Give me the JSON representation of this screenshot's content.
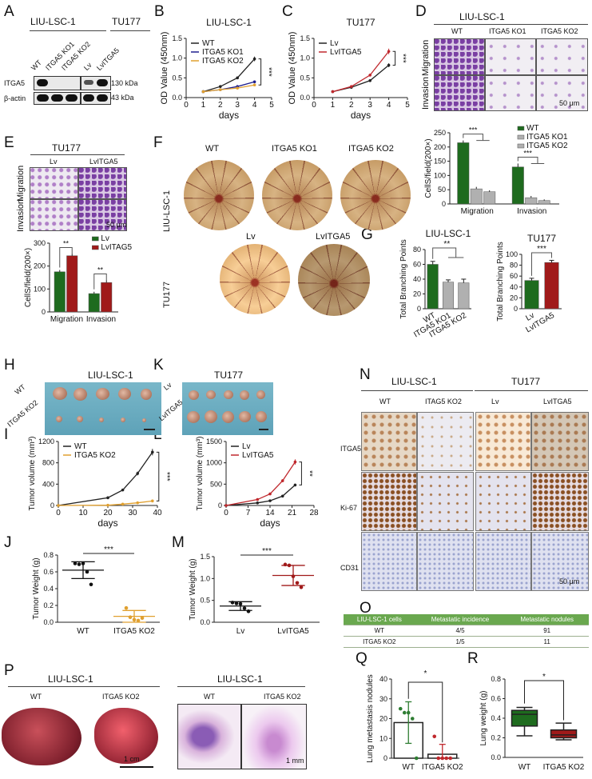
{
  "panel_A": {
    "letter": "A",
    "groups": [
      "LIU-LSC-1",
      "TU177"
    ],
    "lanes": [
      "WT",
      "ITGA5 KO1",
      "ITGA5 KO2",
      "Lv",
      "LvITGA5"
    ],
    "rows": [
      "ITGA5",
      "β-actin"
    ],
    "sizes": [
      "130 kDa",
      "43 kDa"
    ],
    "itga5_band_level": [
      1,
      0,
      0,
      0.5,
      1
    ]
  },
  "panel_B": {
    "letter": "B"
  },
  "panel_C": {
    "letter": "C"
  },
  "panel_D": {
    "letter": "D",
    "title": "LIU-LSC-1",
    "columns": [
      "WT",
      "ITGA5 KO1",
      "ITGA5 KO2"
    ],
    "rows": [
      "Migration",
      "Invasion"
    ],
    "scale": "50 μm"
  },
  "panel_E": {
    "letter": "E",
    "title": "TU177",
    "columns": [
      "Lv",
      "LvITGA5"
    ],
    "rows": [
      "Migration",
      "Invasion"
    ],
    "scale": "50 μm"
  },
  "panel_F": {
    "letter": "F",
    "row1_label": "LIU-LSC-1",
    "row1_columns": [
      "WT",
      "ITGA5 KO1",
      "ITGA5 KO2"
    ],
    "row2_label": "TU177",
    "row2_columns": [
      "Lv",
      "LvITGA5"
    ]
  },
  "panel_G": {
    "letter": "G"
  },
  "panel_H": {
    "letter": "H",
    "title": "LIU-LSC-1",
    "rows": [
      "WT",
      "ITGA5 KO2"
    ]
  },
  "panel_K": {
    "letter": "K",
    "title": "TU177",
    "rows": [
      "Lv",
      "LvITGA5"
    ]
  },
  "panel_I": {
    "letter": "I"
  },
  "panel_L": {
    "letter": "L"
  },
  "panel_J": {
    "letter": "J"
  },
  "panel_M": {
    "letter": "M"
  },
  "panel_N": {
    "letter": "N",
    "groups": [
      "LIU-LSC-1",
      "TU177"
    ],
    "columns": [
      "WT",
      "ITAG5 KO2",
      "Lv",
      "LvITGA5"
    ],
    "rows": [
      "ITGA5",
      "Ki-67",
      "CD31"
    ],
    "scale": "50 μm"
  },
  "panel_O": {
    "letter": "O",
    "header": [
      "LIU-LSC-1 cells",
      "Metastatic incidence",
      "Metastatic nodules"
    ],
    "rows": [
      [
        "WT",
        "4/5",
        "91"
      ],
      [
        "ITGA5 KO2",
        "1/5",
        "11"
      ]
    ],
    "header_color": "#6aa84f"
  },
  "panel_P": {
    "letter": "P",
    "left_title": "LIU-LSC-1",
    "right_title": "LIU-LSC-1",
    "columns": [
      "WT",
      "ITGA5 KO2"
    ],
    "left_scale": "1 cm",
    "right_scale": "1 mm"
  },
  "panel_Q": {
    "letter": "Q"
  },
  "panel_R": {
    "letter": "R"
  },
  "chart_data": [
    {
      "id": "B",
      "type": "line",
      "title": "LIU-LSC-1",
      "xlabel": "days",
      "ylabel": "OD Value (450nm)",
      "xlim": [
        0,
        5
      ],
      "ylim": [
        0,
        1.5
      ],
      "xticks": [
        0,
        1,
        2,
        3,
        4,
        5
      ],
      "yticks": [
        "0.0",
        "0.5",
        "1.0",
        "1.5"
      ],
      "legend": "top-left",
      "significance": [
        "***"
      ],
      "x": [
        1,
        2,
        3,
        4
      ],
      "series": [
        {
          "name": "WT",
          "values": [
            0.15,
            0.28,
            0.5,
            0.98
          ],
          "color": "#222222"
        },
        {
          "name": "ITGA5 KO1",
          "values": [
            0.15,
            0.2,
            0.28,
            0.4
          ],
          "color": "#1f1f8f"
        },
        {
          "name": "ITGA5 KO2",
          "values": [
            0.15,
            0.2,
            0.24,
            0.32
          ],
          "color": "#e0a030"
        }
      ]
    },
    {
      "id": "C",
      "type": "line",
      "title": "TU177",
      "xlabel": "days",
      "ylabel": "OD Value (450nm)",
      "xlim": [
        0,
        5
      ],
      "ylim": [
        0,
        1.5
      ],
      "xticks": [
        0,
        1,
        2,
        3,
        4,
        5
      ],
      "yticks": [
        "0.0",
        "0.5",
        "1.0",
        "1.5"
      ],
      "legend": "top-left",
      "significance": [
        "***"
      ],
      "x": [
        1,
        2,
        3,
        4
      ],
      "series": [
        {
          "name": "Lv",
          "values": [
            0.15,
            0.26,
            0.43,
            0.82
          ],
          "color": "#222222"
        },
        {
          "name": "LvITGA5",
          "values": [
            0.15,
            0.28,
            0.57,
            1.17
          ],
          "color": "#c0282d"
        }
      ]
    },
    {
      "id": "D",
      "type": "grouped_bar",
      "ylabel": "CellS/field(200×)",
      "ylim": [
        0,
        250
      ],
      "yticks": [
        "0",
        "50",
        "100",
        "150",
        "200",
        "250"
      ],
      "legend": "top-right",
      "categories": [
        "Migration",
        "Invasion"
      ],
      "significance": [
        "***",
        "***"
      ],
      "series": [
        {
          "name": "WT",
          "values": [
            215,
            130
          ],
          "errors": [
            8,
            12
          ],
          "color": "#1e6b1e"
        },
        {
          "name": "ITGA5 KO1",
          "values": [
            53,
            22
          ],
          "errors": [
            7,
            6
          ],
          "color": "#b0b0b0"
        },
        {
          "name": "ITGA5 KO2",
          "values": [
            43,
            12
          ],
          "errors": [
            5,
            4
          ],
          "color": "#b0b0b0"
        }
      ]
    },
    {
      "id": "E",
      "type": "grouped_bar",
      "ylabel": "CellS/field(200×)",
      "ylim": [
        0,
        300
      ],
      "yticks": [
        "0",
        "100",
        "200",
        "300"
      ],
      "legend": "top-right",
      "categories": [
        "Migration",
        "Invasion"
      ],
      "significance": [
        "**",
        "**"
      ],
      "series": [
        {
          "name": "Lv",
          "values": [
            175,
            80
          ],
          "errors": [
            8,
            8
          ],
          "color": "#1e6b1e"
        },
        {
          "name": "LvITAG5",
          "values": [
            245,
            128
          ],
          "errors": [
            8,
            10
          ],
          "color": "#a01a1a"
        }
      ]
    },
    {
      "id": "G1",
      "type": "bar",
      "title": "LIU-LSC-1",
      "ylabel": "Total Branching Points",
      "ylim": [
        0,
        80
      ],
      "yticks": [
        "0",
        "20",
        "40",
        "60",
        "80"
      ],
      "categories": [
        "WT",
        "ITGA5 KO1",
        "ITGA5 KO2"
      ],
      "values": [
        60,
        36,
        35
      ],
      "errors": [
        4,
        3,
        5
      ],
      "colors": [
        "#1e6b1e",
        "#b0b0b0",
        "#b0b0b0"
      ],
      "significance": [
        "**"
      ]
    },
    {
      "id": "G2",
      "type": "bar",
      "title": "TU177",
      "ylabel": "Total Branching Points",
      "ylim": [
        0,
        100
      ],
      "yticks": [
        "0",
        "20",
        "40",
        "60",
        "80",
        "100"
      ],
      "categories": [
        "Lv",
        "LvITGA5"
      ],
      "values": [
        52,
        85
      ],
      "errors": [
        4,
        4
      ],
      "colors": [
        "#1e6b1e",
        "#a01a1a"
      ],
      "significance": [
        "***"
      ]
    },
    {
      "id": "I",
      "type": "line",
      "xlabel": "days",
      "ylabel": "Tumor volume (mm³)",
      "xlim": [
        0,
        40
      ],
      "ylim": [
        0,
        1200
      ],
      "xticks": [
        0,
        10,
        20,
        30,
        40
      ],
      "yticks": [
        "0",
        "400",
        "800",
        "1200"
      ],
      "legend": "top-left",
      "significance": [
        "***"
      ],
      "x": [
        0,
        20,
        26,
        32,
        38
      ],
      "series": [
        {
          "name": "WT",
          "values": [
            0,
            145,
            290,
            600,
            1000
          ],
          "color": "#222222"
        },
        {
          "name": "ITGA5 KO2",
          "values": [
            0,
            5,
            25,
            50,
            85
          ],
          "color": "#e0a030"
        }
      ]
    },
    {
      "id": "L",
      "type": "line",
      "xlabel": "days",
      "ylabel": "Tumor volume (mm³)",
      "xlim": [
        0,
        28
      ],
      "ylim": [
        0,
        1500
      ],
      "xticks": [
        0,
        7,
        14,
        21,
        28
      ],
      "yticks": [
        "0",
        "500",
        "1000",
        "1500"
      ],
      "legend": "top-left",
      "significance": [
        "**"
      ],
      "x": [
        0,
        10,
        14,
        18,
        22
      ],
      "series": [
        {
          "name": "Lv",
          "values": [
            0,
            60,
            110,
            220,
            480
          ],
          "color": "#222222"
        },
        {
          "name": "LvITGA5",
          "values": [
            0,
            140,
            270,
            580,
            1020
          ],
          "color": "#c0282d"
        }
      ]
    },
    {
      "id": "J",
      "type": "scatter_mean_sd",
      "ylabel": "Tumor Weight (g)",
      "ylim": [
        0,
        0.8
      ],
      "yticks": [
        "0.0",
        "0.2",
        "0.4",
        "0.6",
        "0.8"
      ],
      "categories": [
        "WT",
        "ITGA5 KO2"
      ],
      "significance": [
        "***"
      ],
      "groups": [
        {
          "points": [
            0.7,
            0.69,
            0.7,
            0.6,
            0.45
          ],
          "mean": 0.62,
          "sd": 0.1,
          "color": "#111111"
        },
        {
          "points": [
            0.17,
            0.06,
            0.03,
            0.02,
            0.05
          ],
          "mean": 0.07,
          "sd": 0.07,
          "color": "#e0a030"
        }
      ]
    },
    {
      "id": "M",
      "type": "scatter_mean_sd",
      "ylabel": "Tumor Weight (g)",
      "ylim": [
        0,
        1.5
      ],
      "yticks": [
        "0.0",
        "0.5",
        "1.0",
        "1.5"
      ],
      "categories": [
        "Lv",
        "LvITGA5"
      ],
      "significance": [
        "***"
      ],
      "groups": [
        {
          "points": [
            0.45,
            0.43,
            0.42,
            0.32,
            0.25
          ],
          "mean": 0.37,
          "sd": 0.1,
          "color": "#111111"
        },
        {
          "points": [
            1.32,
            1.3,
            1.05,
            0.9,
            0.8
          ],
          "mean": 1.07,
          "sd": 0.23,
          "color": "#a01a1a"
        }
      ]
    },
    {
      "id": "Q",
      "type": "bar_points",
      "ylabel": "Lung metastasis nodules",
      "ylim": [
        0,
        40
      ],
      "yticks": [
        "0",
        "10",
        "20",
        "30",
        "40"
      ],
      "categories": [
        "WT",
        "ITGA5 KO2"
      ],
      "significance": [
        "*"
      ],
      "groups": [
        {
          "points": [
            25,
            23,
            23,
            20,
            0
          ],
          "mean": 18,
          "sd": 10.5,
          "color": "#2e7d32"
        },
        {
          "points": [
            11,
            0,
            0,
            0,
            0
          ],
          "mean": 2,
          "sd": 5,
          "color": "#c0282d"
        }
      ]
    },
    {
      "id": "R",
      "type": "box",
      "ylabel": "Lung weight (g)",
      "ylim": [
        0,
        0.8
      ],
      "yticks": [
        "0.0",
        "0.2",
        "0.4",
        "0.6",
        "0.8"
      ],
      "categories": [
        "WT",
        "ITGA5 KO2"
      ],
      "significance": [
        "*"
      ],
      "boxes": [
        {
          "min": 0.22,
          "q1": 0.32,
          "median": 0.44,
          "q3": 0.48,
          "max": 0.51,
          "color": "#1e6b1e"
        },
        {
          "min": 0.18,
          "q1": 0.2,
          "median": 0.23,
          "q3": 0.28,
          "max": 0.35,
          "color": "#a01a1a"
        }
      ]
    }
  ]
}
